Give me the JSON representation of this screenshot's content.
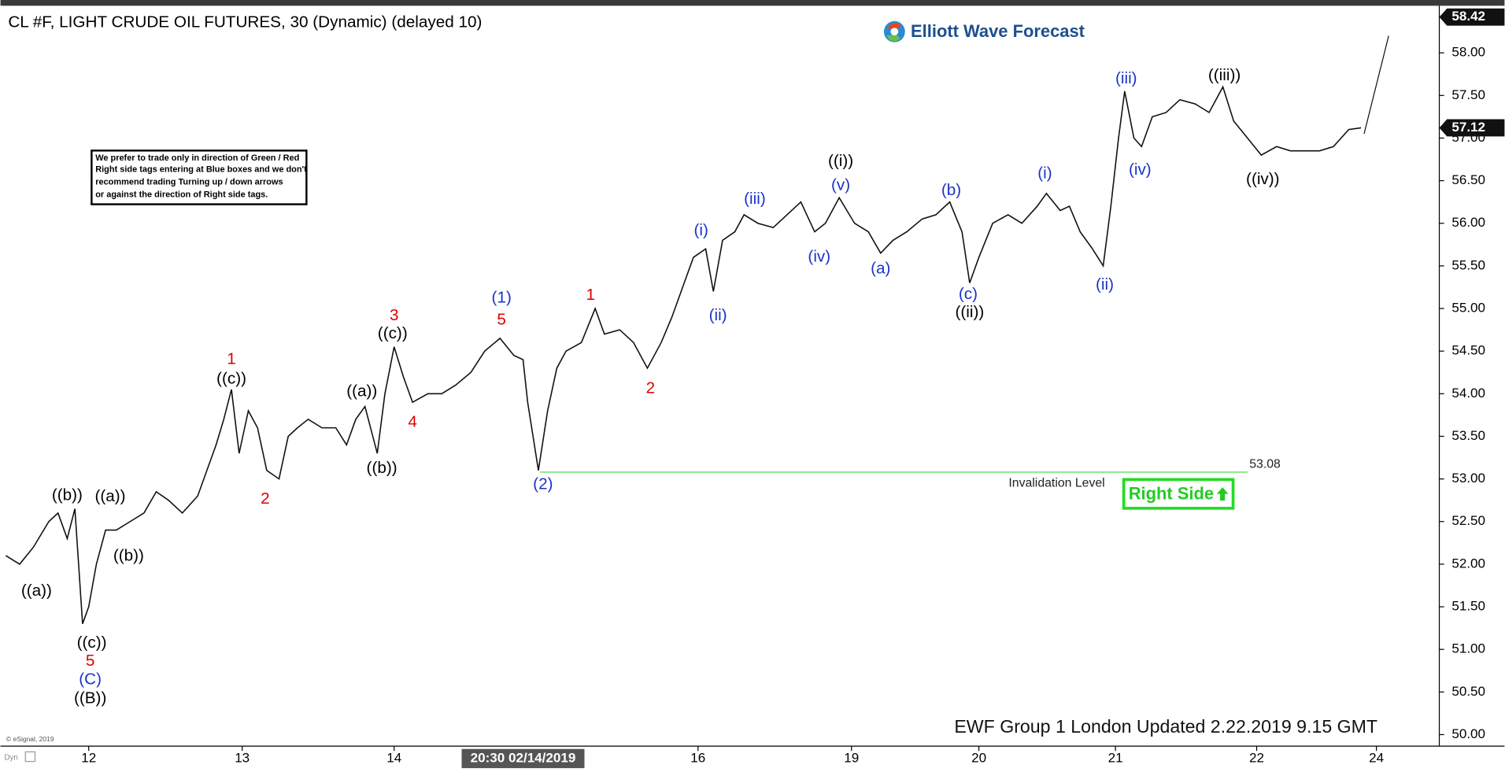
{
  "chart_data": {
    "type": "line",
    "title": "CL #F, LIGHT CRUDE OIL FUTURES, 30 (Dynamic) (delayed 10)",
    "watermark": "Elliott Wave Forecast",
    "note": [
      "We prefer to trade only in direction of Green / Red",
      "Right side tags entering at Blue boxes and we don't",
      "recommend trading Turning up / down arrows",
      "or against the direction of Right side tags."
    ],
    "right_side": "Right Side",
    "footer": "EWF Group 1 London Updated 2.22.2019 9.15 GMT",
    "copyright": "© eSignal, 2019",
    "dyn": "Dyn",
    "color": "#111111",
    "x": [
      -0.54,
      -0.45,
      -0.36,
      -0.26,
      -0.2,
      -0.14,
      -0.09,
      -0.04,
      0,
      0.05,
      0.11,
      0.18,
      0.27,
      0.36,
      0.44,
      0.52,
      0.61,
      0.71,
      0.77,
      0.83,
      0.88,
      0.93,
      0.98,
      1.04,
      1.1,
      1.16,
      1.24,
      1.3,
      1.36,
      1.43,
      1.52,
      1.61,
      1.68,
      1.74,
      1.8,
      1.88,
      1.93,
      1.99,
      2.05,
      2.11,
      2.21,
      2.3,
      2.39,
      2.49,
      2.58,
      2.68,
      2.77,
      2.83,
      2.86,
      2.93,
      2.99,
      3.05,
      3.11,
      3.21,
      3.3,
      3.36,
      3.46,
      3.55,
      3.64,
      3.73,
      3.8,
      3.88,
      3.94,
      4.02,
      4.07,
      4.13,
      4.21,
      4.27,
      4.36,
      4.46,
      4.55,
      4.64,
      4.73,
      4.8,
      4.89,
      4.99,
      5.08,
      5.16,
      5.24,
      5.33,
      5.43,
      5.52,
      5.61,
      5.69,
      5.74,
      5.8,
      5.89,
      5.99,
      6.08,
      6.18,
      6.24,
      6.33,
      6.39,
      6.46,
      6.54,
      6.61,
      6.66,
      6.71,
      6.75,
      6.81,
      6.86,
      6.93,
      7.02,
      7.11,
      7.21,
      7.3,
      7.39,
      7.46,
      7.55,
      7.64,
      7.74,
      7.83,
      7.93,
      8.02,
      8.11,
      8.21,
      8.29
    ],
    "values": [
      52.1,
      52.0,
      52.2,
      52.5,
      52.6,
      52.3,
      52.65,
      51.3,
      51.5,
      52.0,
      52.4,
      52.4,
      52.5,
      52.6,
      52.85,
      52.75,
      52.6,
      52.8,
      53.1,
      53.4,
      53.7,
      54.05,
      53.3,
      53.8,
      53.6,
      53.1,
      53.0,
      53.5,
      53.6,
      53.7,
      53.6,
      53.6,
      53.4,
      53.7,
      53.85,
      53.3,
      54.0,
      54.55,
      54.2,
      53.9,
      54.0,
      54.0,
      54.1,
      54.25,
      54.5,
      54.65,
      54.45,
      54.4,
      53.9,
      53.1,
      53.8,
      54.3,
      54.5,
      54.6,
      55.0,
      54.7,
      54.75,
      54.6,
      54.3,
      54.6,
      54.9,
      55.3,
      55.6,
      55.7,
      55.2,
      55.8,
      55.9,
      56.1,
      56.0,
      55.95,
      56.1,
      56.25,
      55.9,
      56.0,
      56.3,
      56.0,
      55.9,
      55.65,
      55.8,
      55.9,
      56.05,
      56.1,
      56.25,
      55.9,
      55.3,
      55.6,
      56.0,
      56.1,
      56.0,
      56.2,
      56.35,
      56.15,
      56.2,
      55.9,
      55.7,
      55.5,
      56.2,
      57.0,
      57.55,
      57.0,
      56.9,
      57.25,
      57.3,
      57.45,
      57.4,
      57.3,
      57.6,
      57.2,
      57.0,
      56.8,
      56.9,
      56.85,
      56.85,
      56.85,
      56.9,
      57.1,
      57.12
    ],
    "projection": {
      "x": [
        8.31,
        8.47
      ],
      "values": [
        57.05,
        58.2
      ]
    },
    "xlim": [
      -0.575,
      8.8
    ],
    "xticks": [
      {
        "value": 0,
        "label": "12"
      },
      {
        "value": 1.0,
        "label": "13"
      },
      {
        "value": 1.99,
        "label": "14"
      },
      {
        "value": 3.97,
        "label": "16"
      },
      {
        "value": 4.97,
        "label": "19"
      },
      {
        "value": 5.8,
        "label": "20"
      },
      {
        "value": 6.69,
        "label": "21"
      },
      {
        "value": 7.61,
        "label": "22"
      },
      {
        "value": 8.39,
        "label": "24"
      }
    ],
    "x_cursor": {
      "value": 2.83,
      "label": "20:30 02/14/2019"
    },
    "ylim": [
      49.865,
      58.53
    ],
    "yticks": [
      {
        "value": 50,
        "label": "50.00"
      },
      {
        "value": 50.5,
        "label": "50.50"
      },
      {
        "value": 51,
        "label": "51.00"
      },
      {
        "value": 51.5,
        "label": "51.50"
      },
      {
        "value": 52,
        "label": "52.00"
      },
      {
        "value": 52.5,
        "label": "52.50"
      },
      {
        "value": 53,
        "label": "53.00"
      },
      {
        "value": 53.5,
        "label": "53.50"
      },
      {
        "value": 54,
        "label": "54.00"
      },
      {
        "value": 54.5,
        "label": "54.50"
      },
      {
        "value": 55,
        "label": "55.00"
      },
      {
        "value": 55.5,
        "label": "55.50"
      },
      {
        "value": 56,
        "label": "56.00"
      },
      {
        "value": 56.5,
        "label": "56.50"
      },
      {
        "value": 57,
        "label": "57.00"
      },
      {
        "value": 57.5,
        "label": "57.50"
      },
      {
        "value": 58,
        "label": "58.00"
      }
    ],
    "price_markers": [
      58.42,
      57.12
    ],
    "invalidation": {
      "label": "Invalidation Level",
      "value": 53.08,
      "x": [
        2.94,
        7.55
      ],
      "color": "#33dd33"
    },
    "annotations": [
      {
        "text": "((a))",
        "x": -0.34,
        "y": 51.68,
        "color": "#000000"
      },
      {
        "text": "((b))",
        "x": -0.14,
        "y": 52.8,
        "color": "#000000"
      },
      {
        "text": "((a))",
        "x": 0.14,
        "y": 52.79,
        "color": "#000000"
      },
      {
        "text": "((b))",
        "x": 0.26,
        "y": 52.09,
        "color": "#000000"
      },
      {
        "text": "((c))",
        "x": 0.02,
        "y": 51.07,
        "color": "#000000"
      },
      {
        "text": "5",
        "x": 0.01,
        "y": 50.86,
        "color": "#dd0000"
      },
      {
        "text": "(C)",
        "x": 0.01,
        "y": 50.64,
        "color": "#1a33c8"
      },
      {
        "text": "((B))",
        "x": 0.01,
        "y": 50.42,
        "color": "#000000"
      },
      {
        "text": "1",
        "x": 0.93,
        "y": 54.4,
        "color": "#dd0000"
      },
      {
        "text": "((c))",
        "x": 0.93,
        "y": 54.17,
        "color": "#000000"
      },
      {
        "text": "2",
        "x": 1.15,
        "y": 52.76,
        "color": "#dd0000"
      },
      {
        "text": "((a))",
        "x": 1.78,
        "y": 54.02,
        "color": "#000000"
      },
      {
        "text": "((b))",
        "x": 1.91,
        "y": 53.12,
        "color": "#000000"
      },
      {
        "text": "3",
        "x": 1.99,
        "y": 54.91,
        "color": "#dd0000"
      },
      {
        "text": "((c))",
        "x": 1.98,
        "y": 54.7,
        "color": "#000000"
      },
      {
        "text": "4",
        "x": 2.11,
        "y": 53.66,
        "color": "#dd0000"
      },
      {
        "text": "(1)",
        "x": 2.69,
        "y": 55.12,
        "color": "#1a33c8"
      },
      {
        "text": "5",
        "x": 2.69,
        "y": 54.86,
        "color": "#dd0000"
      },
      {
        "text": "(2)",
        "x": 2.96,
        "y": 52.93,
        "color": "#1a33c8"
      },
      {
        "text": "1",
        "x": 3.27,
        "y": 55.15,
        "color": "#dd0000"
      },
      {
        "text": "2",
        "x": 3.66,
        "y": 54.06,
        "color": "#dd0000"
      },
      {
        "text": "(i)",
        "x": 3.99,
        "y": 55.91,
        "color": "#1a33c8"
      },
      {
        "text": "(ii)",
        "x": 4.1,
        "y": 54.91,
        "color": "#1a33c8"
      },
      {
        "text": "(iii)",
        "x": 4.34,
        "y": 56.28,
        "color": "#1a33c8"
      },
      {
        "text": "(iv)",
        "x": 4.76,
        "y": 55.6,
        "color": "#1a33c8"
      },
      {
        "text": "((i))",
        "x": 4.9,
        "y": 56.72,
        "color": "#000000"
      },
      {
        "text": "(v)",
        "x": 4.9,
        "y": 56.44,
        "color": "#1a33c8"
      },
      {
        "text": "(a)",
        "x": 5.16,
        "y": 55.46,
        "color": "#1a33c8"
      },
      {
        "text": "(b)",
        "x": 5.62,
        "y": 56.38,
        "color": "#1a33c8"
      },
      {
        "text": "(c)",
        "x": 5.73,
        "y": 55.16,
        "color": "#1a33c8"
      },
      {
        "text": "((ii))",
        "x": 5.74,
        "y": 54.95,
        "color": "#000000"
      },
      {
        "text": "(i)",
        "x": 6.23,
        "y": 56.58,
        "color": "#1a33c8"
      },
      {
        "text": "(ii)",
        "x": 6.62,
        "y": 55.27,
        "color": "#1a33c8"
      },
      {
        "text": "(iii)",
        "x": 6.76,
        "y": 57.69,
        "color": "#1a33c8"
      },
      {
        "text": "(iv)",
        "x": 6.85,
        "y": 56.62,
        "color": "#1a33c8"
      },
      {
        "text": "((iii))",
        "x": 7.4,
        "y": 57.73,
        "color": "#000000"
      },
      {
        "text": "((iv))",
        "x": 7.65,
        "y": 56.51,
        "color": "#000000"
      }
    ]
  }
}
